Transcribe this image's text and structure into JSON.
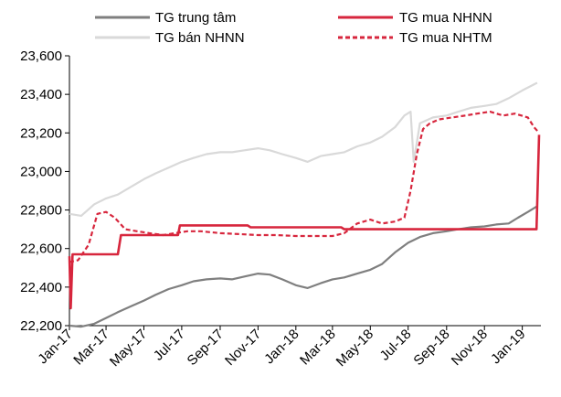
{
  "chart_data": {
    "type": "line",
    "title": "",
    "xlabel": "",
    "ylabel": "",
    "ylim": [
      22200,
      23600
    ],
    "xlim": [
      "2017-01-01",
      "2019-01-31"
    ],
    "y_ticks": [
      "22,200",
      "22,400",
      "22,600",
      "22,800",
      "23,000",
      "23,200",
      "23,400",
      "23,600"
    ],
    "y_tick_values": [
      22200,
      22400,
      22600,
      22800,
      23000,
      23200,
      23400,
      23600
    ],
    "x_ticks": [
      "Jan-17",
      "Mar-17",
      "May-17",
      "Jul-17",
      "Sep-17",
      "Nov-17",
      "Jan-18",
      "Mar-18",
      "May-18",
      "Jul-18",
      "Sep-18",
      "Nov-18",
      "Jan-19"
    ],
    "x_tick_dates": [
      "2017-01-01",
      "2017-03-01",
      "2017-05-01",
      "2017-07-01",
      "2017-09-01",
      "2017-11-01",
      "2018-01-01",
      "2018-03-01",
      "2018-05-01",
      "2018-07-01",
      "2018-09-01",
      "2018-11-01",
      "2019-01-01"
    ],
    "grid": false,
    "legend": "top",
    "series": [
      {
        "name": "TG trung tâm",
        "color": "#7f7f7f",
        "style": "solid",
        "x": [
          "2017-01-01",
          "2017-01-20",
          "2017-02-10",
          "2017-03-01",
          "2017-03-20",
          "2017-04-10",
          "2017-05-01",
          "2017-05-20",
          "2017-06-10",
          "2017-07-01",
          "2017-07-20",
          "2017-08-10",
          "2017-09-01",
          "2017-09-20",
          "2017-10-10",
          "2017-11-01",
          "2017-11-20",
          "2017-12-10",
          "2018-01-01",
          "2018-01-20",
          "2018-02-10",
          "2018-03-01",
          "2018-03-20",
          "2018-04-10",
          "2018-05-01",
          "2018-05-20",
          "2018-06-10",
          "2018-07-01",
          "2018-07-20",
          "2018-08-10",
          "2018-09-01",
          "2018-09-20",
          "2018-10-10",
          "2018-11-01",
          "2018-11-20",
          "2018-12-10",
          "2018-12-25",
          "2019-01-10",
          "2019-01-25"
        ],
        "values": [
          22200,
          22195,
          22210,
          22240,
          22270,
          22300,
          22330,
          22360,
          22390,
          22410,
          22430,
          22440,
          22445,
          22440,
          22455,
          22470,
          22465,
          22440,
          22410,
          22395,
          22420,
          22440,
          22450,
          22470,
          22490,
          22520,
          22580,
          22630,
          22660,
          22680,
          22690,
          22700,
          22710,
          22715,
          22725,
          22730,
          22760,
          22790,
          22820
        ]
      },
      {
        "name": "TG bán NHNN",
        "color": "#d9d9d9",
        "style": "solid",
        "x": [
          "2017-01-01",
          "2017-01-20",
          "2017-02-10",
          "2017-03-01",
          "2017-03-20",
          "2017-04-10",
          "2017-05-01",
          "2017-05-20",
          "2017-06-10",
          "2017-07-01",
          "2017-07-20",
          "2017-08-10",
          "2017-09-01",
          "2017-09-20",
          "2017-10-10",
          "2017-11-01",
          "2017-11-20",
          "2017-12-10",
          "2018-01-01",
          "2018-01-20",
          "2018-02-10",
          "2018-03-01",
          "2018-03-20",
          "2018-04-10",
          "2018-05-01",
          "2018-05-20",
          "2018-06-10",
          "2018-06-25",
          "2018-07-05",
          "2018-07-10",
          "2018-07-20",
          "2018-08-10",
          "2018-09-01",
          "2018-09-20",
          "2018-10-10",
          "2018-11-01",
          "2018-11-20",
          "2018-12-10",
          "2019-01-01",
          "2019-01-25"
        ],
        "values": [
          22780,
          22770,
          22830,
          22860,
          22880,
          22920,
          22960,
          22990,
          23020,
          23050,
          23070,
          23090,
          23100,
          23100,
          23110,
          23120,
          23110,
          23090,
          23070,
          23050,
          23080,
          23090,
          23100,
          23130,
          23150,
          23180,
          23230,
          23290,
          23310,
          23050,
          23250,
          23280,
          23290,
          23310,
          23330,
          23340,
          23350,
          23380,
          23420,
          23460
        ]
      },
      {
        "name": "TG mua NHNN",
        "color": "#d7263d",
        "style": "solid",
        "x": [
          "2017-01-01",
          "2017-01-03",
          "2017-01-06",
          "2017-03-20",
          "2017-03-25",
          "2017-06-25",
          "2017-06-28",
          "2017-10-15",
          "2017-10-20",
          "2018-03-15",
          "2018-03-20",
          "2018-08-20",
          "2018-08-25",
          "2019-01-22",
          "2019-01-24",
          "2019-01-28"
        ],
        "values": [
          22560,
          22290,
          22570,
          22570,
          22670,
          22670,
          22720,
          22720,
          22710,
          22710,
          22700,
          22700,
          22700,
          22700,
          22700,
          23190
        ]
      },
      {
        "name": "TG mua NHTM",
        "color": "#d7263d",
        "style": "dashed",
        "x": [
          "2017-01-01",
          "2017-01-15",
          "2017-02-01",
          "2017-02-15",
          "2017-03-01",
          "2017-03-15",
          "2017-04-01",
          "2017-04-20",
          "2017-05-10",
          "2017-06-01",
          "2017-06-20",
          "2017-07-10",
          "2017-08-01",
          "2017-09-01",
          "2017-10-01",
          "2017-11-01",
          "2017-12-01",
          "2018-01-01",
          "2018-02-01",
          "2018-03-01",
          "2018-03-20",
          "2018-04-10",
          "2018-05-01",
          "2018-05-20",
          "2018-06-10",
          "2018-06-25",
          "2018-07-05",
          "2018-07-15",
          "2018-07-25",
          "2018-08-05",
          "2018-08-20",
          "2018-09-10",
          "2018-10-01",
          "2018-10-20",
          "2018-11-10",
          "2018-12-01",
          "2018-12-20",
          "2019-01-10",
          "2019-01-20",
          "2019-01-28"
        ],
        "values": [
          22530,
          22540,
          22620,
          22780,
          22790,
          22760,
          22700,
          22690,
          22680,
          22670,
          22680,
          22690,
          22690,
          22680,
          22675,
          22670,
          22670,
          22665,
          22665,
          22665,
          22680,
          22730,
          22750,
          22730,
          22740,
          22760,
          22900,
          23090,
          23220,
          23250,
          23270,
          23280,
          23290,
          23300,
          23310,
          23290,
          23300,
          23280,
          23230,
          23200
        ]
      }
    ]
  }
}
